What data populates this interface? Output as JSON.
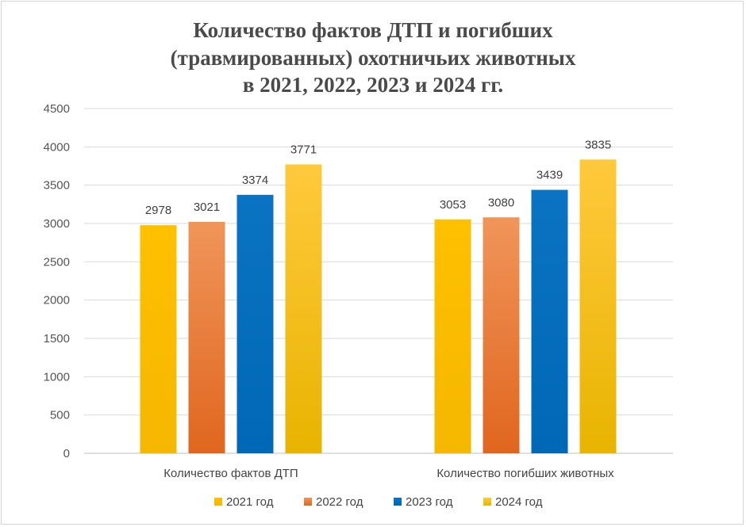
{
  "chart_data": {
    "type": "bar",
    "title": [
      "Количество фактов ДТП и погибших",
      "(травмированных) охотничьих животных",
      "в 2021, 2022, 2023 и 2024 гг."
    ],
    "categories": [
      "Количество фактов ДТП",
      "Количество погибших животных"
    ],
    "series": [
      {
        "name": "2021 год",
        "values": [
          2978,
          3053
        ],
        "color": "#FFC000"
      },
      {
        "name": "2022 год",
        "values": [
          3021,
          3080
        ],
        "color": "#ED7D31"
      },
      {
        "name": "2023 год",
        "values": [
          3374,
          3439
        ],
        "color": "#0070C0"
      },
      {
        "name": "2024 год",
        "values": [
          3771,
          3835
        ],
        "color": "#FFC000"
      }
    ],
    "ylim": [
      0,
      4500
    ],
    "yticks": [
      "0",
      "500",
      "1000",
      "1500",
      "2000",
      "2500",
      "3000",
      "3500",
      "4000",
      "4500"
    ],
    "grid": true,
    "legend_position": "bottom",
    "data_labels": true
  }
}
